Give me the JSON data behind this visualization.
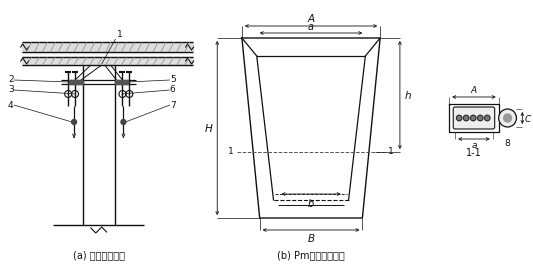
{
  "bg_color": "#ffffff",
  "title_a": "(a) 张拉端示意图",
  "title_b": "(b) Pm钢制锥形锚头",
  "label_11": "1-1",
  "text_color": "#111111",
  "line_color": "#111111",
  "gray_fill": "#888888",
  "light_gray": "#cccccc"
}
